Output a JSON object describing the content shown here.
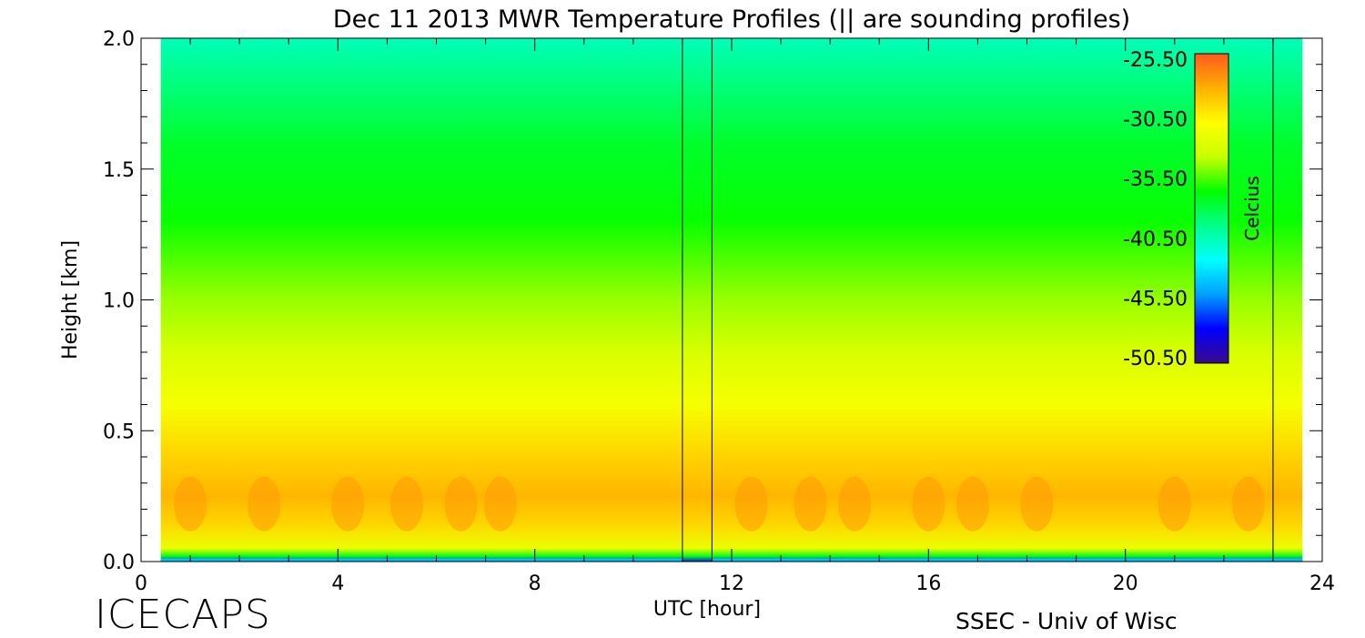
{
  "chart_data": {
    "type": "heatmap",
    "title": "Dec 11 2013 MWR Temperature Profiles (|| are sounding profiles)",
    "xlabel": "UTC [hour]",
    "ylabel": "Height [km]",
    "xlim": [
      0,
      24
    ],
    "ylim": [
      0,
      2.0
    ],
    "x_ticks": [
      "0",
      "4",
      "8",
      "12",
      "16",
      "20",
      "24"
    ],
    "y_ticks": [
      "0.0",
      "0.5",
      "1.0",
      "1.5",
      "2.0"
    ],
    "data_time_range_hours": [
      0.4,
      23.6
    ],
    "colorbar": {
      "label": "Celcius",
      "min": -50.5,
      "max": -25.5,
      "ticks": [
        "-25.50",
        "-30.50",
        "-35.50",
        "-40.50",
        "-45.50",
        "-50.50"
      ],
      "colormap": [
        "#3a0a8c",
        "#0000ff",
        "#00a0ff",
        "#00ffff",
        "#00ff8a",
        "#00ff00",
        "#c8ff00",
        "#ffff00",
        "#ffb000",
        "#ff5a1e"
      ]
    },
    "sounding_profiles_utc": [
      11.0,
      11.6,
      23.0
    ],
    "profile_levels": [
      {
        "height_km": 0.0,
        "temp_c": -48.0
      },
      {
        "height_km": 0.02,
        "temp_c": -37.0
      },
      {
        "height_km": 0.05,
        "temp_c": -32.0
      },
      {
        "height_km": 0.15,
        "temp_c": -29.5
      },
      {
        "height_km": 0.25,
        "temp_c": -28.5
      },
      {
        "height_km": 0.4,
        "temp_c": -29.5
      },
      {
        "height_km": 0.6,
        "temp_c": -31.5
      },
      {
        "height_km": 0.8,
        "temp_c": -33.0
      },
      {
        "height_km": 1.0,
        "temp_c": -34.5
      },
      {
        "height_km": 1.3,
        "temp_c": -36.5
      },
      {
        "height_km": 1.6,
        "temp_c": -37.5
      },
      {
        "height_km": 2.0,
        "temp_c": -40.5
      }
    ]
  },
  "branding": {
    "left": "ICECAPS",
    "right": "SSEC - Univ of Wisc"
  }
}
